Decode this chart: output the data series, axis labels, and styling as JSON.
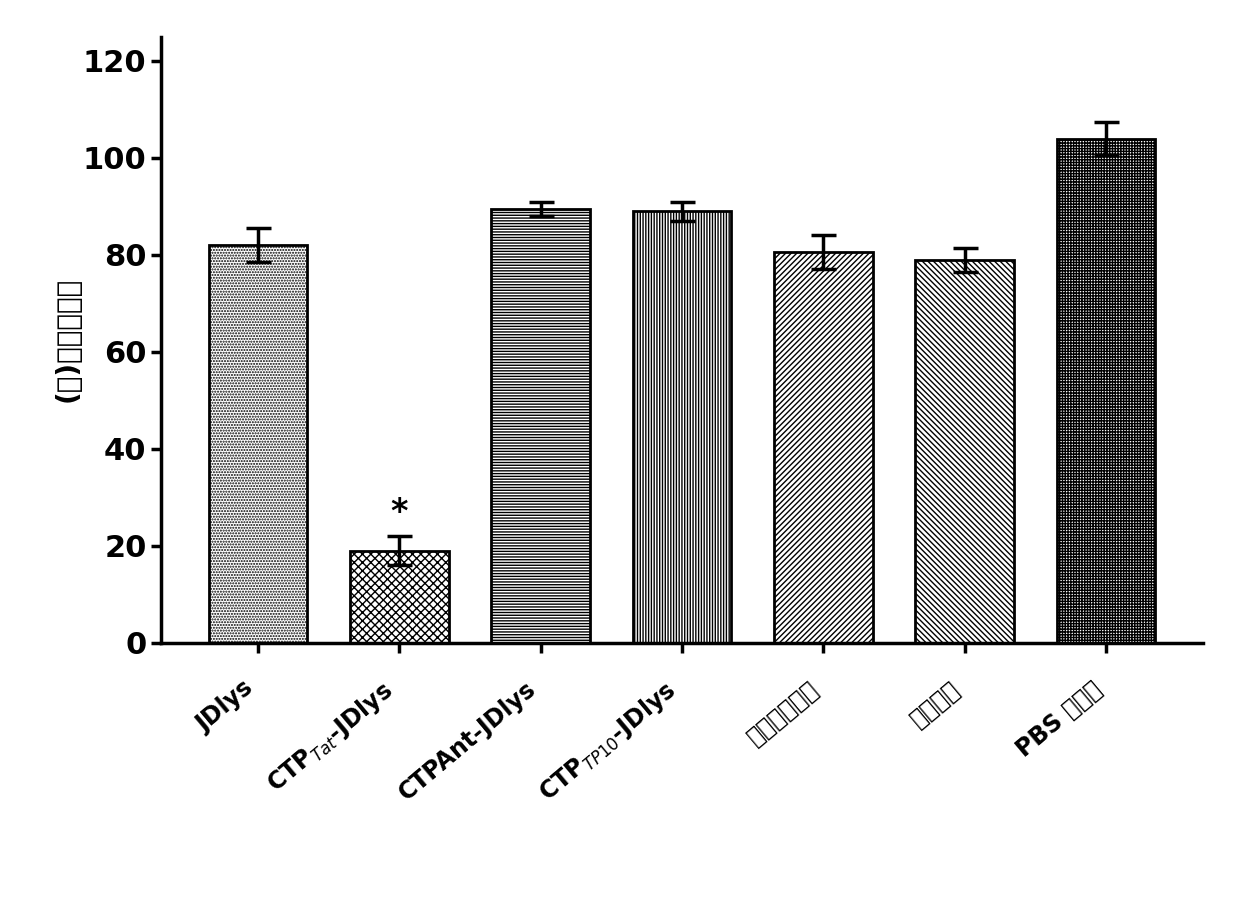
{
  "x_labels_raw": [
    "JDlys₁",
    "CTP_Tat-JDlys",
    "CTPAnt-JDlys",
    "CTP_TP10-JDlys",
    "流感葡球団草",
    "万古霉素",
    "PBS 对照组"
  ],
  "values": [
    82.0,
    19.0,
    89.5,
    89.0,
    80.5,
    79.0,
    104.0
  ],
  "errors": [
    3.5,
    3.0,
    1.5,
    2.0,
    3.5,
    2.5,
    3.5
  ],
  "star_annotation": [
    false,
    true,
    false,
    false,
    false,
    false,
    false
  ],
  "ylabel_chinese": "(％)细胞存活率",
  "ylim": [
    0,
    125
  ],
  "yticks": [
    0,
    20,
    40,
    60,
    80,
    100,
    120
  ],
  "background_color": "#ffffff",
  "bar_width": 0.7,
  "figsize": [
    12.4,
    9.18
  ],
  "dpi": 100
}
